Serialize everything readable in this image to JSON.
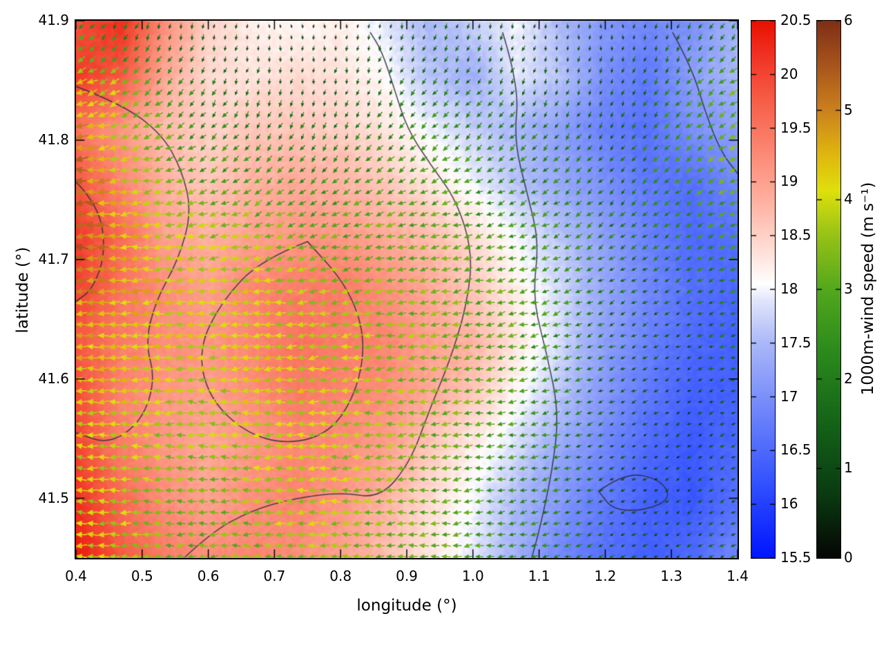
{
  "figure": {
    "xlabel": "longitude (°)",
    "ylabel": "latitude (°)",
    "wind_colorbar_label": "1000m-wind speed (m s⁻¹)"
  },
  "chart_data": {
    "type": "heatmap",
    "overlay": "quiver",
    "x_range": [
      0.4,
      1.4
    ],
    "y_range": [
      41.45,
      41.9
    ],
    "x_ticks": [
      {
        "v": 0.4,
        "label": "0.4"
      },
      {
        "v": 0.5,
        "label": "0.5"
      },
      {
        "v": 0.6,
        "label": "0.6"
      },
      {
        "v": 0.7,
        "label": "0.7"
      },
      {
        "v": 0.8,
        "label": "0.8"
      },
      {
        "v": 0.9,
        "label": "0.9"
      },
      {
        "v": 1.0,
        "label": "1.0"
      },
      {
        "v": 1.1,
        "label": "1.1"
      },
      {
        "v": 1.2,
        "label": "1.2"
      },
      {
        "v": 1.3,
        "label": "1.3"
      },
      {
        "v": 1.4,
        "label": "1.4"
      }
    ],
    "y_ticks": [
      {
        "v": 41.5,
        "label": "41.5"
      },
      {
        "v": 41.6,
        "label": "41.6"
      },
      {
        "v": 41.7,
        "label": "41.7"
      },
      {
        "v": 41.8,
        "label": "41.8"
      },
      {
        "v": 41.9,
        "label": "41.9"
      }
    ],
    "temperature": {
      "range": [
        15.5,
        20.5
      ],
      "ticks": [
        {
          "v": 15.5,
          "label": "15.5"
        },
        {
          "v": 16,
          "label": "16"
        },
        {
          "v": 16.5,
          "label": "16.5"
        },
        {
          "v": 17,
          "label": "17"
        },
        {
          "v": 17.5,
          "label": "17.5"
        },
        {
          "v": 18,
          "label": "18"
        },
        {
          "v": 18.5,
          "label": "18.5"
        },
        {
          "v": 19,
          "label": "19"
        },
        {
          "v": 19.5,
          "label": "19.5"
        },
        {
          "v": 20,
          "label": "20"
        },
        {
          "v": 20.5,
          "label": "20.5"
        }
      ],
      "values": [
        [
          19.9,
          20.2,
          19.2,
          18.5,
          18.2,
          18.1,
          18.2,
          17.9,
          17.5,
          17.7,
          18.0,
          17.5,
          17.1,
          16.9,
          17.0,
          17.4
        ],
        [
          20.1,
          19.8,
          18.9,
          18.4,
          18.3,
          18.4,
          18.3,
          18.1,
          17.6,
          17.4,
          17.9,
          17.6,
          17.0,
          16.7,
          17.2,
          17.5
        ],
        [
          19.5,
          19.1,
          18.7,
          18.5,
          18.6,
          18.6,
          18.5,
          18.3,
          18.0,
          17.7,
          17.5,
          17.2,
          16.8,
          16.6,
          17.0,
          17.2
        ],
        [
          19.8,
          19.3,
          18.8,
          18.6,
          18.8,
          18.9,
          18.8,
          18.6,
          18.3,
          18.0,
          17.6,
          17.3,
          17.0,
          16.7,
          16.6,
          16.9
        ],
        [
          20.1,
          19.6,
          19.0,
          18.8,
          19.0,
          19.1,
          19.1,
          18.9,
          18.7,
          18.4,
          18.0,
          17.6,
          17.2,
          16.8,
          16.5,
          16.6
        ],
        [
          20.0,
          19.5,
          19.2,
          19.0,
          19.3,
          19.4,
          19.4,
          19.2,
          18.9,
          18.6,
          18.2,
          17.8,
          17.3,
          16.9,
          16.6,
          16.5
        ],
        [
          19.8,
          19.4,
          19.2,
          19.1,
          19.3,
          19.5,
          19.4,
          19.3,
          19.0,
          18.8,
          18.3,
          17.8,
          17.2,
          16.8,
          16.5,
          16.4
        ],
        [
          19.9,
          19.3,
          19.1,
          19.0,
          19.2,
          19.4,
          19.3,
          19.2,
          18.9,
          18.6,
          18.1,
          17.6,
          17.1,
          16.7,
          16.4,
          16.4
        ],
        [
          20.0,
          19.4,
          19.1,
          18.9,
          19.1,
          19.3,
          19.2,
          19.0,
          18.6,
          18.2,
          17.8,
          17.3,
          16.9,
          16.5,
          16.3,
          16.5
        ],
        [
          20.2,
          19.6,
          19.2,
          19.0,
          19.2,
          19.3,
          19.1,
          18.8,
          18.4,
          18.0,
          17.5,
          17.1,
          16.7,
          16.4,
          16.3,
          16.6
        ],
        [
          20.4,
          19.8,
          19.4,
          19.2,
          19.3,
          19.2,
          19.0,
          18.7,
          18.3,
          17.9,
          17.4,
          16.9,
          16.6,
          16.4,
          16.5,
          16.9
        ]
      ]
    },
    "wind": {
      "range": [
        0,
        6
      ],
      "ticks": [
        {
          "v": 0,
          "label": "0"
        },
        {
          "v": 1,
          "label": "1"
        },
        {
          "v": 2,
          "label": "2"
        },
        {
          "v": 3,
          "label": "3"
        },
        {
          "v": 4,
          "label": "4"
        },
        {
          "v": 5,
          "label": "5"
        },
        {
          "v": 6,
          "label": "6"
        }
      ],
      "speed": [
        [
          2.2,
          1.6,
          1.0,
          0.7,
          0.6,
          0.8,
          1.2,
          1.0,
          0.7,
          0.8,
          1.2,
          1.8
        ],
        [
          4.6,
          3.2,
          2.0,
          1.4,
          1.2,
          1.6,
          2.0,
          1.8,
          1.3,
          1.2,
          2.2,
          3.0
        ],
        [
          5.3,
          3.6,
          2.6,
          2.4,
          2.0,
          2.4,
          2.6,
          2.4,
          2.0,
          1.6,
          2.6,
          3.4
        ],
        [
          5.5,
          4.2,
          3.6,
          3.4,
          3.0,
          3.0,
          3.0,
          2.6,
          2.4,
          2.0,
          2.2,
          2.8
        ],
        [
          5.0,
          4.4,
          4.0,
          4.0,
          3.6,
          3.4,
          3.2,
          3.0,
          2.6,
          1.6,
          1.6,
          2.2
        ],
        [
          4.4,
          4.2,
          4.0,
          4.1,
          4.0,
          3.6,
          3.4,
          3.0,
          2.4,
          1.4,
          1.0,
          1.6
        ],
        [
          4.2,
          4.0,
          3.6,
          4.0,
          4.0,
          3.6,
          3.2,
          2.8,
          2.2,
          1.0,
          0.8,
          1.1
        ],
        [
          4.0,
          3.6,
          3.2,
          3.6,
          3.9,
          3.5,
          3.0,
          2.6,
          2.0,
          1.0,
          0.8,
          1.3
        ],
        [
          4.1,
          3.6,
          3.1,
          3.4,
          3.6,
          3.2,
          3.0,
          2.5,
          2.0,
          1.4,
          1.0,
          1.6
        ]
      ],
      "direction_deg": [
        [
          225,
          248,
          262,
          270,
          272,
          266,
          252,
          256,
          266,
          270,
          252,
          232
        ],
        [
          200,
          216,
          238,
          254,
          258,
          246,
          232,
          236,
          250,
          254,
          232,
          214
        ],
        [
          186,
          196,
          212,
          226,
          234,
          226,
          216,
          216,
          226,
          234,
          220,
          206
        ],
        [
          180,
          184,
          192,
          200,
          206,
          200,
          196,
          200,
          210,
          220,
          214,
          200
        ],
        [
          180,
          181,
          185,
          187,
          191,
          191,
          191,
          195,
          201,
          210,
          209,
          199
        ],
        [
          179,
          180,
          181,
          183,
          186,
          186,
          189,
          193,
          199,
          205,
          206,
          196
        ],
        [
          177,
          179,
          180,
          181,
          183,
          185,
          187,
          191,
          197,
          205,
          210,
          200
        ],
        [
          176,
          178,
          180,
          180,
          182,
          184,
          186,
          190,
          195,
          206,
          214,
          205
        ],
        [
          175,
          178,
          180,
          180,
          181,
          183,
          186,
          190,
          196,
          206,
          215,
          209
        ]
      ]
    },
    "contours": [
      [
        [
          0.4,
          41.845
        ],
        [
          0.47,
          41.83
        ],
        [
          0.53,
          41.805
        ],
        [
          0.56,
          41.775
        ],
        [
          0.575,
          41.74
        ],
        [
          0.555,
          41.7
        ],
        [
          0.52,
          41.665
        ],
        [
          0.505,
          41.63
        ],
        [
          0.52,
          41.6
        ],
        [
          0.5,
          41.565
        ],
        [
          0.45,
          41.545
        ],
        [
          0.4,
          41.555
        ]
      ],
      [
        [
          0.4,
          41.765
        ],
        [
          0.435,
          41.745
        ],
        [
          0.445,
          41.705
        ],
        [
          0.425,
          41.675
        ],
        [
          0.4,
          41.665
        ]
      ],
      [
        [
          0.55,
          41.443
        ],
        [
          0.6,
          41.47
        ],
        [
          0.665,
          41.49
        ],
        [
          0.73,
          41.5
        ],
        [
          0.8,
          41.505
        ],
        [
          0.86,
          41.5
        ],
        [
          0.905,
          41.53
        ],
        [
          0.935,
          41.575
        ],
        [
          0.965,
          41.615
        ],
        [
          0.99,
          41.66
        ],
        [
          1.0,
          41.705
        ],
        [
          0.975,
          41.75
        ],
        [
          0.935,
          41.78
        ],
        [
          0.9,
          41.81
        ],
        [
          0.88,
          41.845
        ],
        [
          0.862,
          41.875
        ],
        [
          0.845,
          41.89
        ]
      ],
      [
        [
          0.75,
          41.715
        ],
        [
          0.68,
          41.7
        ],
        [
          0.62,
          41.665
        ],
        [
          0.585,
          41.625
        ],
        [
          0.6,
          41.585
        ],
        [
          0.655,
          41.555
        ],
        [
          0.72,
          41.545
        ],
        [
          0.785,
          41.555
        ],
        [
          0.825,
          41.59
        ],
        [
          0.838,
          41.635
        ],
        [
          0.81,
          41.678
        ],
        [
          0.75,
          41.715
        ]
      ],
      [
        [
          1.045,
          41.89
        ],
        [
          1.07,
          41.845
        ],
        [
          1.062,
          41.8
        ],
        [
          1.082,
          41.755
        ],
        [
          1.1,
          41.715
        ],
        [
          1.09,
          41.668
        ],
        [
          1.112,
          41.62
        ],
        [
          1.13,
          41.572
        ],
        [
          1.12,
          41.523
        ],
        [
          1.1,
          41.472
        ],
        [
          1.085,
          41.443
        ]
      ],
      [
        [
          1.19,
          41.506
        ],
        [
          1.23,
          41.522
        ],
        [
          1.283,
          41.516
        ],
        [
          1.3,
          41.5
        ],
        [
          1.262,
          41.49
        ],
        [
          1.212,
          41.49
        ],
        [
          1.19,
          41.506
        ]
      ],
      [
        [
          1.302,
          41.89
        ],
        [
          1.33,
          41.862
        ],
        [
          1.352,
          41.822
        ],
        [
          1.375,
          41.79
        ],
        [
          1.4,
          41.772
        ]
      ]
    ],
    "colormaps": {
      "temperature": [
        {
          "v": 15.5,
          "c": "#0014ff"
        },
        {
          "v": 16.2,
          "c": "#3352ff"
        },
        {
          "v": 16.9,
          "c": "#7288fb"
        },
        {
          "v": 17.5,
          "c": "#aab8f8"
        },
        {
          "v": 17.9,
          "c": "#e2e6fb"
        },
        {
          "v": 18.05,
          "c": "#ffffff"
        },
        {
          "v": 18.35,
          "c": "#ffe0d8"
        },
        {
          "v": 18.8,
          "c": "#ffb3a3"
        },
        {
          "v": 19.3,
          "c": "#fc8672"
        },
        {
          "v": 19.8,
          "c": "#f65a43"
        },
        {
          "v": 20.2,
          "c": "#f03022"
        },
        {
          "v": 20.5,
          "c": "#e81000"
        }
      ],
      "wind": [
        {
          "v": 0,
          "c": "#050505"
        },
        {
          "v": 0.7,
          "c": "#0a3a10"
        },
        {
          "v": 1.5,
          "c": "#146318"
        },
        {
          "v": 2.3,
          "c": "#2b8a1c"
        },
        {
          "v": 3.0,
          "c": "#53a81c"
        },
        {
          "v": 3.6,
          "c": "#96c216"
        },
        {
          "v": 4.1,
          "c": "#dfe00c"
        },
        {
          "v": 4.5,
          "c": "#e0b70f"
        },
        {
          "v": 5.0,
          "c": "#cb811d"
        },
        {
          "v": 5.5,
          "c": "#a8551c"
        },
        {
          "v": 6,
          "c": "#7e2f15"
        }
      ]
    }
  }
}
